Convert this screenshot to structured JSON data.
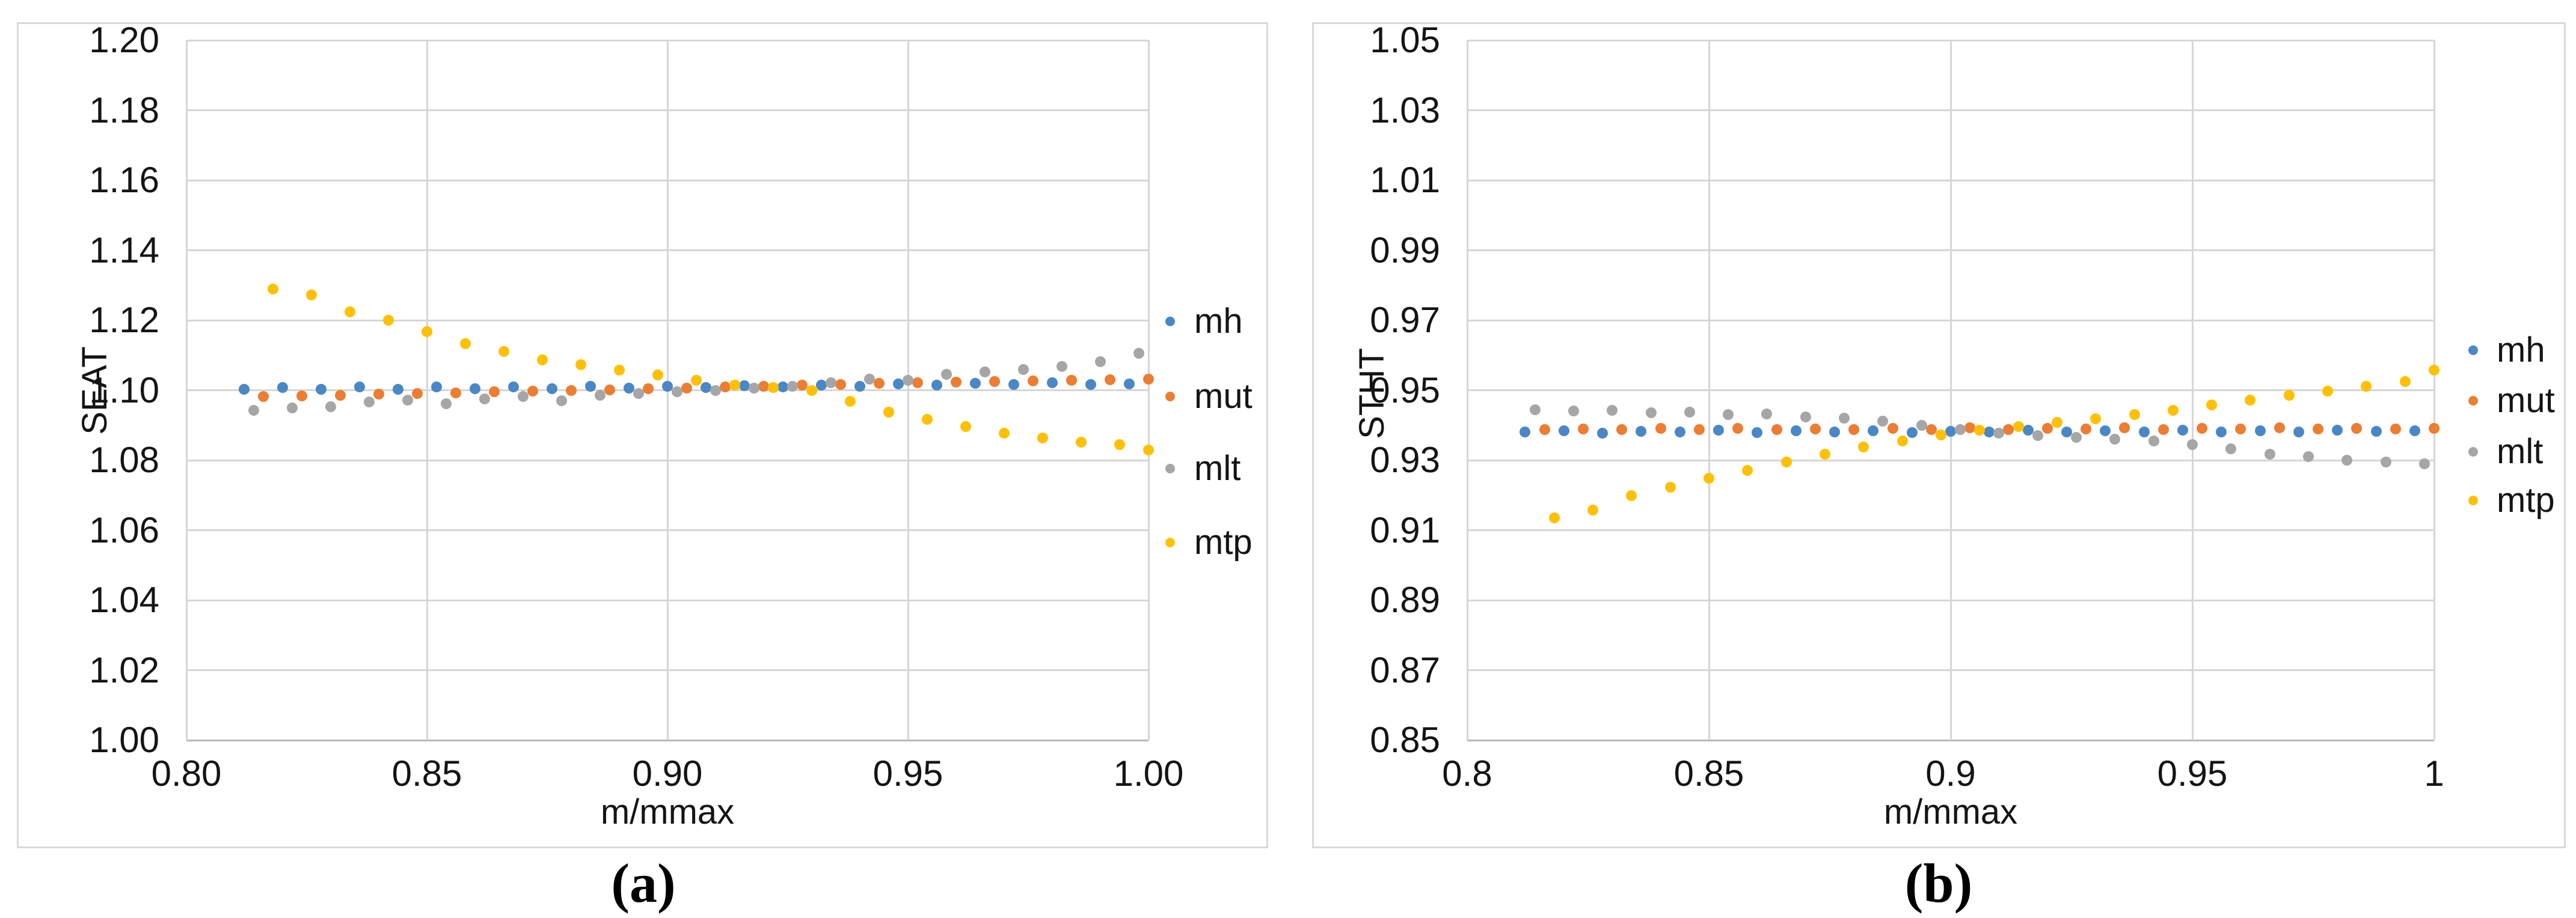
{
  "colors": {
    "mh": "#4A87C7",
    "mut": "#ED7D31",
    "mlt": "#A6A6A6",
    "mtp": "#FFC000",
    "gridline": "#D6D6D6",
    "axis_line": "#B8B8B8",
    "text": "#141414",
    "panel_border": "#D9D9D9"
  },
  "chart_data": [
    {
      "type": "scatter",
      "title": "",
      "caption": "(a)",
      "xlabel": "m/mmax",
      "ylabel": "SEAT",
      "xlim": [
        0.8,
        1.0
      ],
      "ylim": [
        1.0,
        1.2
      ],
      "grid": true,
      "legend_position": "right",
      "x_tick_labels": [
        "0.80",
        "0.85",
        "0.90",
        "0.95",
        "1.00"
      ],
      "y_tick_labels": [
        "1.20",
        "1.18",
        "1.16",
        "1.14",
        "1.12",
        "1.10",
        "1.08",
        "1.06",
        "1.04",
        "1.02",
        "1.00"
      ],
      "series": [
        {
          "name": "mh",
          "color_key": "mh",
          "x": [
            0.812,
            0.82,
            0.828,
            0.836,
            0.844,
            0.852,
            0.86,
            0.868,
            0.876,
            0.884,
            0.892,
            0.9,
            0.908,
            0.916,
            0.924,
            0.932,
            0.94,
            0.948,
            0.956,
            0.964,
            0.972,
            0.98,
            0.988,
            0.996
          ],
          "y": [
            1.1003,
            1.1008,
            1.1002,
            1.1009,
            1.1003,
            1.101,
            1.1004,
            1.101,
            1.1005,
            1.1011,
            1.1006,
            1.1011,
            1.1008,
            1.1013,
            1.101,
            1.1015,
            1.1012,
            1.1018,
            1.1015,
            1.102,
            1.1016,
            1.1021,
            1.1017,
            1.1018
          ]
        },
        {
          "name": "mut",
          "color_key": "mut",
          "x": [
            0.816,
            0.824,
            0.832,
            0.84,
            0.848,
            0.856,
            0.864,
            0.872,
            0.88,
            0.888,
            0.896,
            0.904,
            0.912,
            0.92,
            0.928,
            0.936,
            0.944,
            0.952,
            0.96,
            0.968,
            0.976,
            0.984,
            0.992,
            1.0
          ],
          "y": [
            1.0982,
            1.0984,
            1.0986,
            1.0988,
            1.099,
            1.0993,
            1.0995,
            1.0997,
            1.0999,
            1.1001,
            1.1004,
            1.1006,
            1.1009,
            1.1011,
            1.1014,
            1.1016,
            1.1019,
            1.1021,
            1.1023,
            1.1025,
            1.1027,
            1.1029,
            1.103,
            1.1032
          ]
        },
        {
          "name": "mlt",
          "color_key": "mlt",
          "x": [
            0.814,
            0.822,
            0.83,
            0.838,
            0.846,
            0.854,
            0.862,
            0.87,
            0.878,
            0.886,
            0.894,
            0.902,
            0.91,
            0.918,
            0.926,
            0.934,
            0.942,
            0.95,
            0.958,
            0.966,
            0.974,
            0.982,
            0.99,
            0.998
          ],
          "y": [
            1.0942,
            1.095,
            1.0953,
            1.0966,
            1.0972,
            1.0962,
            1.0975,
            1.0982,
            1.097,
            1.0985,
            1.099,
            1.0995,
            1.1,
            1.1006,
            1.1012,
            1.1022,
            1.1032,
            1.1028,
            1.1045,
            1.1052,
            1.106,
            1.1068,
            1.1082,
            1.1105
          ]
        },
        {
          "name": "mtp",
          "color_key": "mtp",
          "x": [
            0.818,
            0.826,
            0.834,
            0.842,
            0.85,
            0.858,
            0.866,
            0.874,
            0.882,
            0.89,
            0.898,
            0.906,
            0.914,
            0.922,
            0.93,
            0.938,
            0.946,
            0.954,
            0.962,
            0.97,
            0.978,
            0.986,
            0.994,
            1.0
          ],
          "y": [
            1.129,
            1.1272,
            1.1224,
            1.12,
            1.1168,
            1.1133,
            1.111,
            1.1086,
            1.1073,
            1.1058,
            1.1044,
            1.1028,
            1.1014,
            1.1008,
            1.1,
            1.0968,
            1.0938,
            1.0916,
            1.0896,
            1.0878,
            1.0864,
            1.0852,
            1.0844,
            1.083
          ]
        }
      ]
    },
    {
      "type": "scatter",
      "title": "",
      "caption": "(b)",
      "xlabel": "m/mmax",
      "ylabel": "STHT",
      "xlim": [
        0.8,
        1.0
      ],
      "ylim": [
        0.85,
        1.05
      ],
      "grid": true,
      "legend_position": "right",
      "x_tick_labels": [
        "0.8",
        "0.85",
        "0.9",
        "0.95",
        "1"
      ],
      "y_tick_labels": [
        "1.05",
        "1.03",
        "1.01",
        "0.99",
        "0.97",
        "0.95",
        "0.93",
        "0.91",
        "0.89",
        "0.87",
        "0.85"
      ],
      "series": [
        {
          "name": "mh",
          "color_key": "mh",
          "x": [
            0.812,
            0.82,
            0.828,
            0.836,
            0.844,
            0.852,
            0.86,
            0.868,
            0.876,
            0.884,
            0.892,
            0.9,
            0.908,
            0.916,
            0.924,
            0.932,
            0.94,
            0.948,
            0.956,
            0.964,
            0.972,
            0.98,
            0.988,
            0.996
          ],
          "y": [
            0.938,
            0.9384,
            0.9378,
            0.9383,
            0.938,
            0.9385,
            0.9379,
            0.9384,
            0.938,
            0.9384,
            0.9379,
            0.9383,
            0.9381,
            0.9385,
            0.938,
            0.9384,
            0.9381,
            0.9385,
            0.9381,
            0.9384,
            0.938,
            0.9385,
            0.9382,
            0.9384
          ]
        },
        {
          "name": "mut",
          "color_key": "mut",
          "x": [
            0.816,
            0.824,
            0.832,
            0.84,
            0.848,
            0.856,
            0.864,
            0.872,
            0.88,
            0.888,
            0.896,
            0.904,
            0.912,
            0.92,
            0.928,
            0.936,
            0.944,
            0.952,
            0.96,
            0.968,
            0.976,
            0.984,
            0.992,
            1.0
          ],
          "y": [
            0.9388,
            0.939,
            0.9387,
            0.9391,
            0.9388,
            0.9391,
            0.9387,
            0.939,
            0.9388,
            0.9391,
            0.9388,
            0.9392,
            0.9388,
            0.9391,
            0.9389,
            0.9392,
            0.9388,
            0.9391,
            0.9389,
            0.9392,
            0.9389,
            0.9391,
            0.9389,
            0.9391
          ]
        },
        {
          "name": "mlt",
          "color_key": "mlt",
          "x": [
            0.814,
            0.822,
            0.83,
            0.838,
            0.846,
            0.854,
            0.862,
            0.87,
            0.878,
            0.886,
            0.894,
            0.902,
            0.91,
            0.918,
            0.926,
            0.934,
            0.942,
            0.95,
            0.958,
            0.966,
            0.974,
            0.982,
            0.99,
            0.998
          ],
          "y": [
            0.9445,
            0.944,
            0.9442,
            0.9435,
            0.9437,
            0.943,
            0.9432,
            0.9424,
            0.942,
            0.9412,
            0.94,
            0.9388,
            0.9378,
            0.937,
            0.9366,
            0.936,
            0.9355,
            0.9345,
            0.9332,
            0.9318,
            0.931,
            0.93,
            0.9295,
            0.929
          ]
        },
        {
          "name": "mtp",
          "color_key": "mtp",
          "x": [
            0.818,
            0.826,
            0.834,
            0.842,
            0.85,
            0.858,
            0.866,
            0.874,
            0.882,
            0.89,
            0.898,
            0.906,
            0.914,
            0.922,
            0.93,
            0.938,
            0.946,
            0.954,
            0.962,
            0.97,
            0.978,
            0.986,
            0.994,
            1.0
          ],
          "y": [
            0.9135,
            0.9158,
            0.9198,
            0.9222,
            0.9248,
            0.927,
            0.9295,
            0.9318,
            0.9338,
            0.9355,
            0.9372,
            0.9386,
            0.9396,
            0.9408,
            0.9418,
            0.943,
            0.9443,
            0.9458,
            0.9472,
            0.9486,
            0.9498,
            0.9512,
            0.9525,
            0.9558
          ]
        }
      ]
    }
  ]
}
